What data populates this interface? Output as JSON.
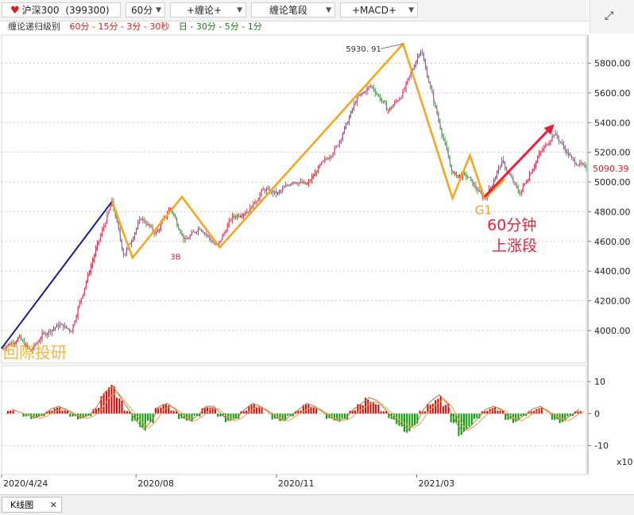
{
  "toolbar": {
    "security_name": "沪深300",
    "security_code": "(399300)",
    "period": "60分",
    "indicator_1": "+缠论+",
    "indicator_2": "缠论笔段",
    "indicator_3": "+MACD+"
  },
  "subbar": {
    "label": "缠论递归级别",
    "levels_a": "60分 - 15分 - 3分 - 30秒",
    "levels_b": "日 - 30分 - 5分 - 1分"
  },
  "colors": {
    "up": "#e00000",
    "down": "#00a000",
    "bi": "#f5a623",
    "trend": "#1c1c8f",
    "arrow": "#e8203a",
    "level_a": "#d42020",
    "level_b": "#1a7a1a"
  },
  "chart_data": [
    {
      "type": "line",
      "title": "",
      "y_ticks": [
        4000,
        4200,
        4400,
        4600,
        4800,
        5000,
        5200,
        5400,
        5600,
        5800
      ],
      "ylim": [
        3780,
        5990
      ],
      "x_ticks": [
        "2020/4/24",
        "2020/08",
        "2020/11",
        "2021/03"
      ],
      "last_price": "5090.39",
      "peak_label": "5930. 91",
      "series": [
        {
          "name": "",
          "x": [
            0,
            6,
            10,
            14,
            20,
            24,
            27,
            32,
            38,
            42,
            48,
            53,
            58,
            63,
            68,
            74,
            79,
            85,
            90,
            95,
            100,
            105,
            110,
            115,
            119,
            122,
            127,
            133,
            138,
            144,
            150,
            155,
            160,
            166,
            172,
            178,
            185,
            190,
            196,
            201
          ],
          "y": [
            3880,
            3950,
            3860,
            3970,
            4040,
            4000,
            4200,
            4520,
            4870,
            4500,
            4760,
            4650,
            4830,
            4600,
            4700,
            4560,
            4760,
            4810,
            4950,
            4920,
            5010,
            4980,
            5120,
            5230,
            5410,
            5560,
            5650,
            5480,
            5600,
            5900,
            5430,
            5050,
            5040,
            4880,
            5140,
            4920,
            5190,
            5330,
            5150,
            5090
          ]
        }
      ],
      "bi_points": {
        "x": [
          38,
          45,
          62,
          75,
          138,
          155,
          161,
          166,
          173
        ],
        "y": [
          4870,
          4490,
          4900,
          4560,
          5930,
          4890,
          5180,
          4890,
          5020
        ]
      },
      "trend_line": {
        "x": [
          0,
          38
        ],
        "y": [
          3880,
          4870
        ]
      },
      "arrow": {
        "x": [
          166,
          190
        ],
        "y": [
          4900,
          5390
        ]
      },
      "annotations": {
        "3b": "3B",
        "g1": "G1",
        "up_seg_line1": "60分钟",
        "up_seg_line2": "上涨段",
        "watermark": "回隙投研"
      }
    },
    {
      "type": "bar",
      "title": "MACD",
      "y_ticks": [
        10,
        0,
        -10
      ],
      "ylim": [
        -19,
        15
      ],
      "unit_label": "x10",
      "macd": [
        1,
        0,
        -1,
        -2,
        -1,
        1,
        2,
        1,
        -1,
        -2,
        -1,
        2,
        7,
        9,
        5,
        1,
        -3,
        -6,
        -3,
        2,
        3,
        1,
        -2,
        -3,
        -1,
        2,
        2,
        -1,
        -3,
        -2,
        1,
        3,
        2,
        0,
        -2,
        -3,
        -1,
        1,
        3,
        2,
        0,
        -2,
        -3,
        -2,
        1,
        3,
        5,
        4,
        1,
        -2,
        -4,
        -6,
        -4,
        1,
        4,
        6,
        3,
        -3,
        -7,
        -5,
        -2,
        1,
        2,
        1,
        -2,
        -3,
        -1,
        1,
        2,
        0,
        -2,
        -3,
        -1,
        1
      ]
    }
  ]
}
